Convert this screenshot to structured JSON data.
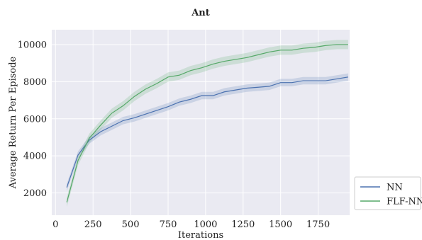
{
  "chart_data": {
    "type": "line",
    "title": "Ant",
    "xlabel": "Iterations",
    "ylabel": "Average Return Per Episode",
    "xlim": [
      -25,
      1960
    ],
    "ylim": [
      800,
      10800
    ],
    "xticks": [
      0,
      250,
      500,
      750,
      1000,
      1250,
      1500,
      1750
    ],
    "yticks": [
      2000,
      4000,
      6000,
      8000,
      10000
    ],
    "grid": true,
    "legend_position": "outside-right-bottom",
    "series": [
      {
        "name": "NN",
        "color": "#4c72b0",
        "band": 200,
        "x": [
          75,
          150,
          225,
          300,
          375,
          450,
          525,
          600,
          675,
          750,
          825,
          900,
          975,
          1050,
          1125,
          1200,
          1275,
          1350,
          1425,
          1500,
          1575,
          1650,
          1725,
          1800,
          1875,
          1950
        ],
        "y": [
          2300,
          4050,
          4850,
          5300,
          5600,
          5900,
          6050,
          6250,
          6450,
          6650,
          6900,
          7050,
          7250,
          7250,
          7450,
          7550,
          7650,
          7700,
          7750,
          7950,
          7950,
          8050,
          8050,
          8050,
          8150,
          8250
        ]
      },
      {
        "name": "FLF-NN",
        "color": "#55a868",
        "band": 250,
        "x": [
          75,
          150,
          225,
          300,
          375,
          450,
          525,
          600,
          675,
          750,
          825,
          900,
          975,
          1050,
          1125,
          1200,
          1275,
          1350,
          1425,
          1500,
          1575,
          1650,
          1725,
          1800,
          1875,
          1950
        ],
        "y": [
          1500,
          3750,
          4950,
          5650,
          6300,
          6700,
          7200,
          7600,
          7900,
          8250,
          8350,
          8600,
          8750,
          8950,
          9100,
          9200,
          9300,
          9450,
          9600,
          9700,
          9700,
          9800,
          9850,
          9950,
          10000,
          10000
        ]
      }
    ]
  }
}
